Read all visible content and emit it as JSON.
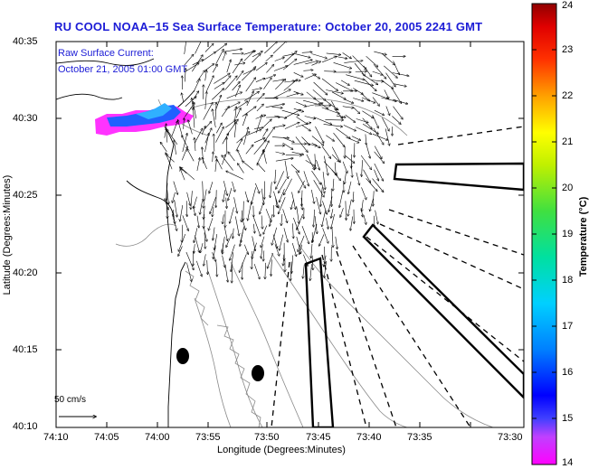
{
  "title": "RU COOL  NOAA−15  Sea Surface Temperature:  October 20, 2005 2241 GMT",
  "legend": {
    "line1": "Raw Surface Current:",
    "line2": "October 21, 2005 01:00 GMT"
  },
  "axes": {
    "xlabel": "Longitude (Degrees:Minutes)",
    "ylabel": "Latitude (Degrees:Minutes)",
    "xticks": [
      "74:10",
      "74:05",
      "74:00",
      "73:55",
      "73:50",
      "73:45",
      "73:40",
      "73:35",
      "73:30"
    ],
    "yticks": [
      "40:35",
      "40:30",
      "40:25",
      "40:20",
      "40:15",
      "40:10"
    ]
  },
  "colorbar": {
    "label": "Temperature (°C)",
    "ticks": [
      "24",
      "23",
      "22",
      "21",
      "20",
      "19",
      "18",
      "17",
      "16",
      "15",
      "14"
    ],
    "min": 14,
    "max": 24
  },
  "scale": {
    "label": "50 cm/s"
  },
  "colors": {
    "title": "#1c1cd6",
    "frame": "#000000"
  }
}
